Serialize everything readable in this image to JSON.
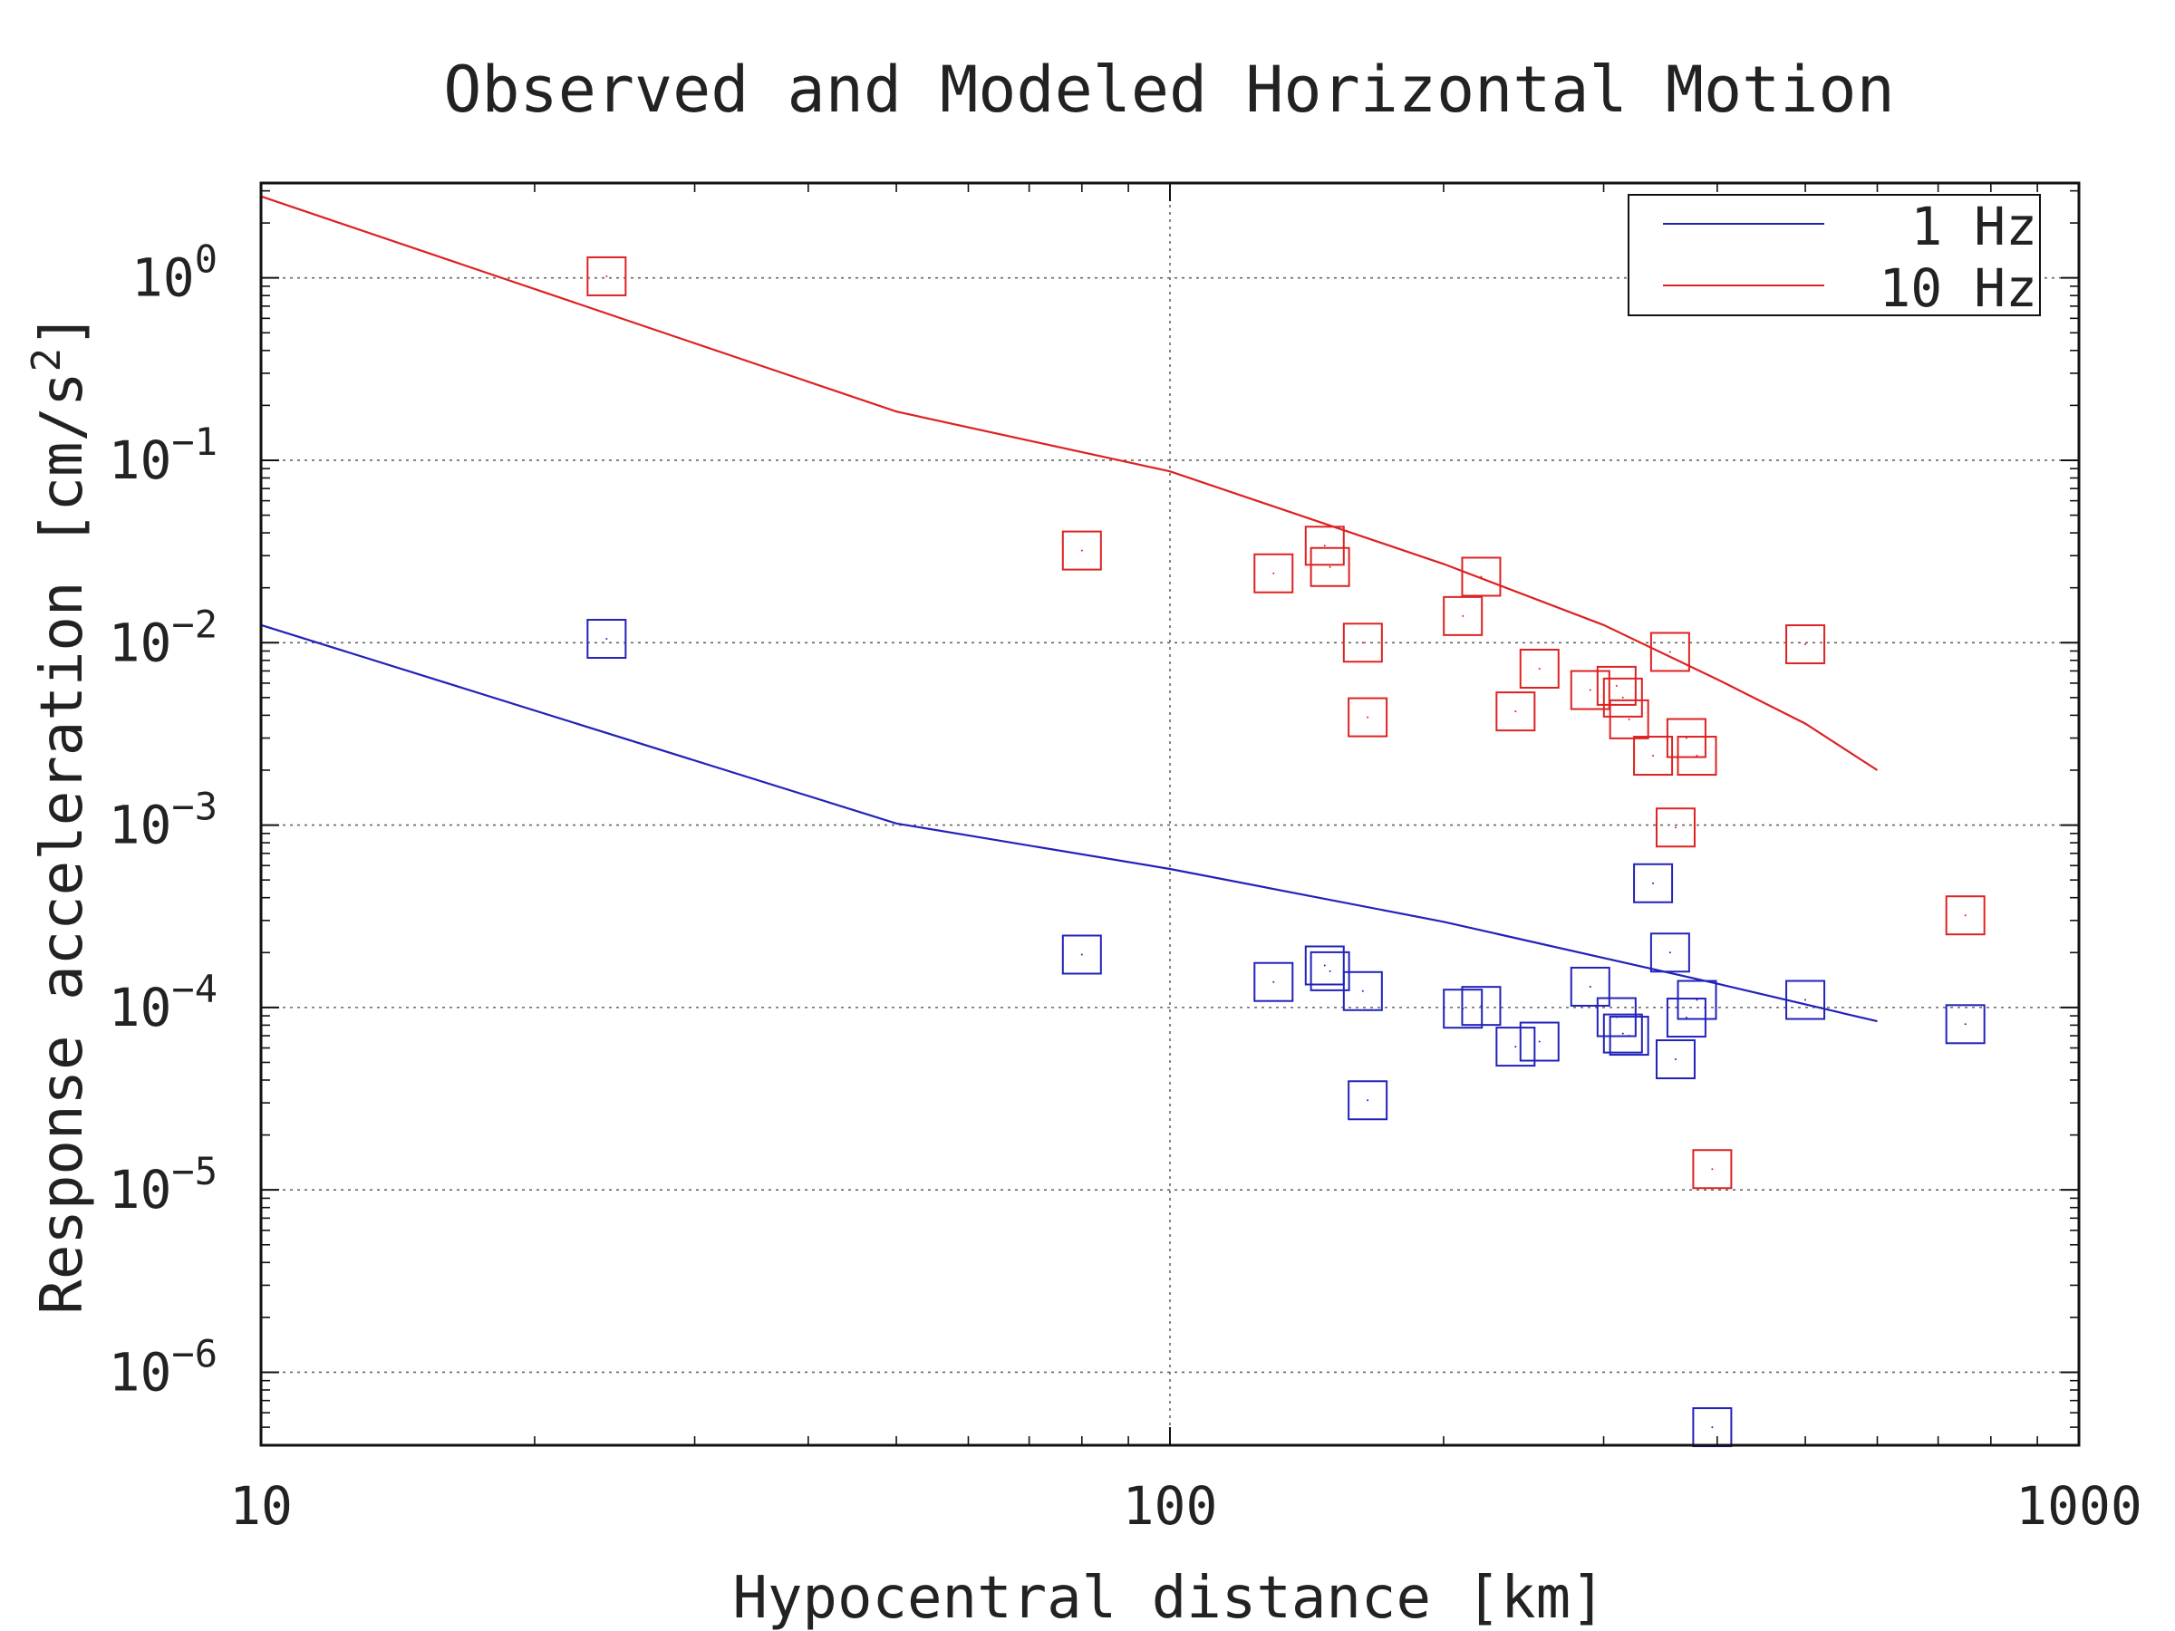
{
  "chart_data": {
    "type": "scatter",
    "title": "Observed and Modeled Horizontal Motion",
    "xlabel": "Hypocentral distance [km]",
    "ylabel": "Response acceleration [cm/s",
    "ylabel_sup": "2",
    "ylabel_end": "]",
    "x_scale": "log",
    "y_scale": "log",
    "xlim": [
      10,
      1000
    ],
    "ylim_exp": [
      -6.4,
      0.52
    ],
    "x_ticks": [
      {
        "value": 10,
        "label": "10"
      },
      {
        "value": 100,
        "label": "100"
      },
      {
        "value": 1000,
        "label": "1000"
      }
    ],
    "y_ticks": [
      {
        "exp": 0,
        "base": "10",
        "sup": "0"
      },
      {
        "exp": -1,
        "base": "10",
        "sup": "−1"
      },
      {
        "exp": -2,
        "base": "10",
        "sup": "−2"
      },
      {
        "exp": -3,
        "base": "10",
        "sup": "−3"
      },
      {
        "exp": -4,
        "base": "10",
        "sup": "−4"
      },
      {
        "exp": -5,
        "base": "10",
        "sup": "−5"
      },
      {
        "exp": -6,
        "base": "10",
        "sup": "−6"
      }
    ],
    "grid": true,
    "legend_position": "top-right",
    "series": [
      {
        "name": "1 Hz",
        "color": "#2222bb",
        "model_line": {
          "x": [
            10,
            50,
            100,
            200,
            400,
            600
          ],
          "y": [
            0.0125,
            0.00102,
            0.000575,
            0.000295,
            0.000135,
            8.4e-05
          ]
        },
        "observed": {
          "x": [
            24,
            80,
            130,
            148,
            150,
            163,
            165,
            210,
            220,
            240,
            255,
            290,
            310,
            315,
            320,
            340,
            355,
            360,
            370,
            380,
            395,
            500,
            750
          ],
          "y": [
            0.0105,
            0.000195,
            0.000138,
            0.00017,
            0.000158,
            0.000123,
            3.1e-05,
            9.85e-05,
            0.000102,
            6.1e-05,
            6.5e-05,
            0.00013,
            8.85e-05,
            7.2e-05,
            7e-05,
            0.00048,
            0.0002,
            5.2e-05,
            8.8e-05,
            0.00011,
            5e-07,
            0.00011,
            8.1e-05
          ]
        }
      },
      {
        "name": "10 Hz",
        "color": "#dd2222",
        "model_line": {
          "x": [
            10,
            50,
            100,
            200,
            300,
            400,
            500,
            600
          ],
          "y": [
            2.8,
            0.185,
            0.087,
            0.027,
            0.0125,
            0.0063,
            0.0036,
            0.002
          ]
        },
        "observed": {
          "x": [
            24,
            80,
            130,
            148,
            150,
            163,
            165,
            210,
            220,
            240,
            255,
            290,
            310,
            315,
            320,
            340,
            355,
            360,
            370,
            380,
            395,
            500,
            750
          ],
          "y": [
            1.02,
            0.032,
            0.024,
            0.034,
            0.026,
            0.01,
            0.0039,
            0.014,
            0.023,
            0.0042,
            0.0072,
            0.0055,
            0.0058,
            0.005,
            0.0038,
            0.0024,
            0.0089,
            0.00097,
            0.003,
            0.0024,
            1.3e-05,
            0.0098,
            0.00032
          ]
        }
      }
    ]
  }
}
